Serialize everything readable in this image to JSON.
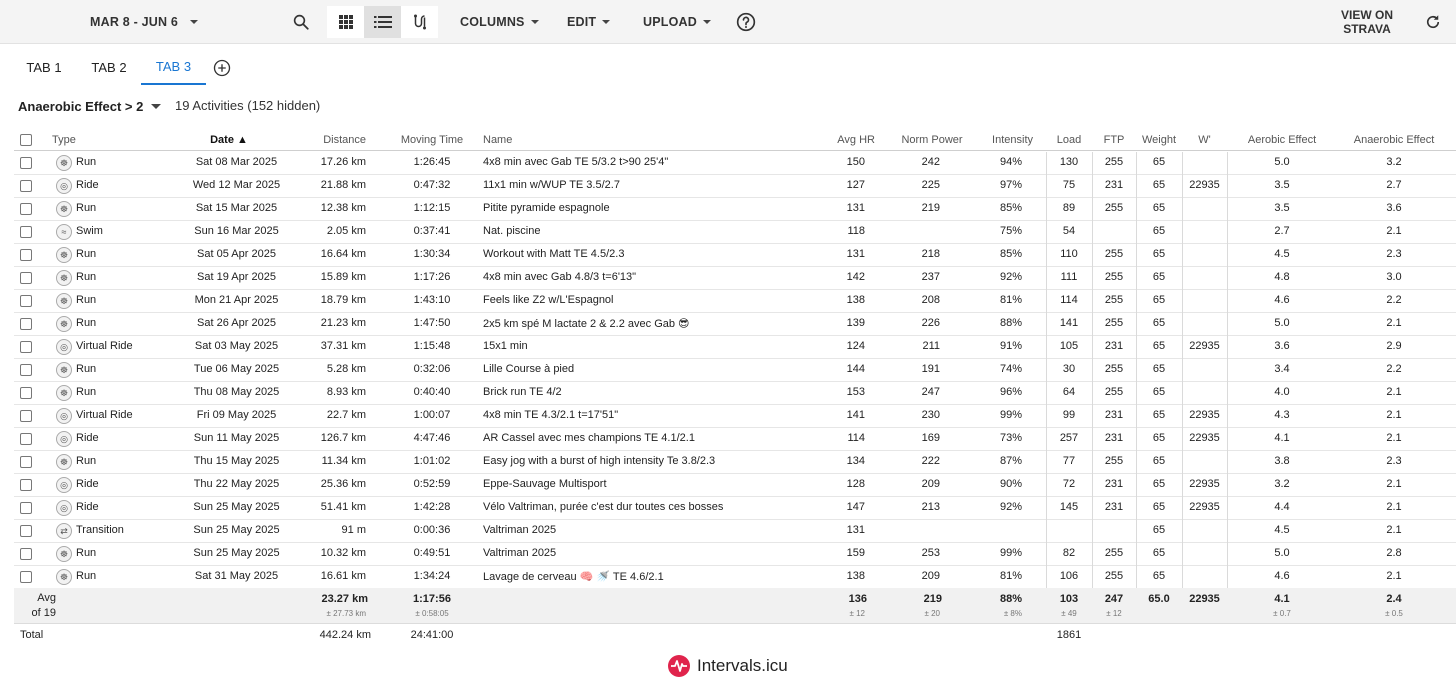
{
  "toolbar": {
    "date_range": "MAR 8 - JUN 6",
    "columns_label": "COLUMNS",
    "edit_label": "EDIT",
    "upload_label": "UPLOAD",
    "view_on_strava_line1": "VIEW ON",
    "view_on_strava_line2": "STRAVA"
  },
  "tabs": [
    {
      "label": "TAB 1",
      "active": false
    },
    {
      "label": "TAB 2",
      "active": false
    },
    {
      "label": "TAB 3",
      "active": true
    }
  ],
  "filter": {
    "label": "Anaerobic Effect > 2",
    "count": "19 Activities (152 hidden)"
  },
  "columns": {
    "type": "Type",
    "date": "Date ▲",
    "distance": "Distance",
    "moving_time": "Moving Time",
    "name": "Name",
    "avg_hr": "Avg HR",
    "norm_power": "Norm Power",
    "intensity": "Intensity",
    "load": "Load",
    "ftp": "FTP",
    "weight": "Weight",
    "w_prime": "W'",
    "aerobic": "Aerobic Effect",
    "anaerobic": "Anaerobic Effect"
  },
  "rows": [
    {
      "type": "Run",
      "date": "Sat 08 Mar 2025",
      "distance": "17.26 km",
      "time": "1:26:45",
      "name": "4x8 min avec Gab TE 5/3.2 t>90 25'4\"",
      "hr": "150",
      "np": "242",
      "int": "94%",
      "load": "130",
      "ftp": "255",
      "wt": "65",
      "wp": "",
      "ae": "5.0",
      "an": "3.2"
    },
    {
      "type": "Ride",
      "date": "Wed 12 Mar 2025",
      "distance": "21.88 km",
      "time": "0:47:32",
      "name": "11x1 min w/WUP TE 3.5/2.7",
      "hr": "127",
      "np": "225",
      "int": "97%",
      "load": "75",
      "ftp": "231",
      "wt": "65",
      "wp": "22935",
      "ae": "3.5",
      "an": "2.7"
    },
    {
      "type": "Run",
      "date": "Sat 15 Mar 2025",
      "distance": "12.38 km",
      "time": "1:12:15",
      "name": "Pitite pyramide espagnole",
      "hr": "131",
      "np": "219",
      "int": "85%",
      "load": "89",
      "ftp": "255",
      "wt": "65",
      "wp": "",
      "ae": "3.5",
      "an": "3.6"
    },
    {
      "type": "Swim",
      "date": "Sun 16 Mar 2025",
      "distance": "2.05 km",
      "time": "0:37:41",
      "name": "Nat. piscine",
      "hr": "118",
      "np": "",
      "int": "75%",
      "load": "54",
      "ftp": "",
      "wt": "65",
      "wp": "",
      "ae": "2.7",
      "an": "2.1"
    },
    {
      "type": "Run",
      "date": "Sat 05 Apr 2025",
      "distance": "16.64 km",
      "time": "1:30:34",
      "name": "Workout with Matt TE 4.5/2.3",
      "hr": "131",
      "np": "218",
      "int": "85%",
      "load": "110",
      "ftp": "255",
      "wt": "65",
      "wp": "",
      "ae": "4.5",
      "an": "2.3"
    },
    {
      "type": "Run",
      "date": "Sat 19 Apr 2025",
      "distance": "15.89 km",
      "time": "1:17:26",
      "name": "4x8 min avec Gab 4.8/3 t=6'13\"",
      "hr": "142",
      "np": "237",
      "int": "92%",
      "load": "111",
      "ftp": "255",
      "wt": "65",
      "wp": "",
      "ae": "4.8",
      "an": "3.0"
    },
    {
      "type": "Run",
      "date": "Mon 21 Apr 2025",
      "distance": "18.79 km",
      "time": "1:43:10",
      "name": "Feels like Z2 w/L'Espagnol",
      "hr": "138",
      "np": "208",
      "int": "81%",
      "load": "114",
      "ftp": "255",
      "wt": "65",
      "wp": "",
      "ae": "4.6",
      "an": "2.2"
    },
    {
      "type": "Run",
      "date": "Sat 26 Apr 2025",
      "distance": "21.23 km",
      "time": "1:47:50",
      "name": "2x5 km spé M lactate 2 & 2.2 avec Gab 😎",
      "hr": "139",
      "np": "226",
      "int": "88%",
      "load": "141",
      "ftp": "255",
      "wt": "65",
      "wp": "",
      "ae": "5.0",
      "an": "2.1"
    },
    {
      "type": "Virtual Ride",
      "date": "Sat 03 May 2025",
      "distance": "37.31 km",
      "time": "1:15:48",
      "name": "15x1 min",
      "hr": "124",
      "np": "211",
      "int": "91%",
      "load": "105",
      "ftp": "231",
      "wt": "65",
      "wp": "22935",
      "ae": "3.6",
      "an": "2.9"
    },
    {
      "type": "Run",
      "date": "Tue 06 May 2025",
      "distance": "5.28 km",
      "time": "0:32:06",
      "name": "Lille Course à pied",
      "hr": "144",
      "np": "191",
      "int": "74%",
      "load": "30",
      "ftp": "255",
      "wt": "65",
      "wp": "",
      "ae": "3.4",
      "an": "2.2"
    },
    {
      "type": "Run",
      "date": "Thu 08 May 2025",
      "distance": "8.93 km",
      "time": "0:40:40",
      "name": "Brick run TE 4/2",
      "hr": "153",
      "np": "247",
      "int": "96%",
      "load": "64",
      "ftp": "255",
      "wt": "65",
      "wp": "",
      "ae": "4.0",
      "an": "2.1"
    },
    {
      "type": "Virtual Ride",
      "date": "Fri 09 May 2025",
      "distance": "22.7 km",
      "time": "1:00:07",
      "name": "4x8 min TE 4.3/2.1 t=17'51\"",
      "hr": "141",
      "np": "230",
      "int": "99%",
      "load": "99",
      "ftp": "231",
      "wt": "65",
      "wp": "22935",
      "ae": "4.3",
      "an": "2.1"
    },
    {
      "type": "Ride",
      "date": "Sun 11 May 2025",
      "distance": "126.7 km",
      "time": "4:47:46",
      "name": "AR Cassel avec mes champions TE 4.1/2.1",
      "hr": "114",
      "np": "169",
      "int": "73%",
      "load": "257",
      "ftp": "231",
      "wt": "65",
      "wp": "22935",
      "ae": "4.1",
      "an": "2.1"
    },
    {
      "type": "Run",
      "date": "Thu 15 May 2025",
      "distance": "11.34 km",
      "time": "1:01:02",
      "name": "Easy jog with a burst of high intensity Te 3.8/2.3",
      "hr": "134",
      "np": "222",
      "int": "87%",
      "load": "77",
      "ftp": "255",
      "wt": "65",
      "wp": "",
      "ae": "3.8",
      "an": "2.3"
    },
    {
      "type": "Ride",
      "date": "Thu 22 May 2025",
      "distance": "25.36 km",
      "time": "0:52:59",
      "name": "Eppe-Sauvage Multisport",
      "hr": "128",
      "np": "209",
      "int": "90%",
      "load": "72",
      "ftp": "231",
      "wt": "65",
      "wp": "22935",
      "ae": "3.2",
      "an": "2.1"
    },
    {
      "type": "Ride",
      "date": "Sun 25 May 2025",
      "distance": "51.41 km",
      "time": "1:42:28",
      "name": "Vélo Valtriman, purée c'est dur toutes ces bosses",
      "hr": "147",
      "np": "213",
      "int": "92%",
      "load": "145",
      "ftp": "231",
      "wt": "65",
      "wp": "22935",
      "ae": "4.4",
      "an": "2.1"
    },
    {
      "type": "Transition",
      "date": "Sun 25 May 2025",
      "distance": "91 m",
      "time": "0:00:36",
      "name": "Valtriman 2025",
      "hr": "131",
      "np": "",
      "int": "",
      "load": "",
      "ftp": "",
      "wt": "65",
      "wp": "",
      "ae": "4.5",
      "an": "2.1"
    },
    {
      "type": "Run",
      "date": "Sun 25 May 2025",
      "distance": "10.32 km",
      "time": "0:49:51",
      "name": "Valtriman 2025",
      "hr": "159",
      "np": "253",
      "int": "99%",
      "load": "82",
      "ftp": "255",
      "wt": "65",
      "wp": "",
      "ae": "5.0",
      "an": "2.8"
    },
    {
      "type": "Run",
      "date": "Sat 31 May 2025",
      "distance": "16.61 km",
      "time": "1:34:24",
      "name": "Lavage de cerveau 🧠 🚿 TE 4.6/2.1",
      "hr": "138",
      "np": "209",
      "int": "81%",
      "load": "106",
      "ftp": "255",
      "wt": "65",
      "wp": "",
      "ae": "4.6",
      "an": "2.1"
    }
  ],
  "avg": {
    "label1": "Avg",
    "label2": "of 19",
    "distance": "23.27 km",
    "distance_sd": "± 27.73 km",
    "time": "1:17:56",
    "time_sd": "± 0:58:05",
    "hr": "136",
    "hr_sd": "± 12",
    "np": "219",
    "np_sd": "± 20",
    "int": "88%",
    "int_sd": "± 8%",
    "load": "103",
    "load_sd": "± 49",
    "ftp": "247",
    "ftp_sd": "± 12",
    "wt": "65.0",
    "wp": "22935",
    "ae": "4.1",
    "ae_sd": "± 0.7",
    "an": "2.4",
    "an_sd": "± 0.5"
  },
  "total": {
    "label": "Total",
    "distance": "442.24 km",
    "time": "24:41:00",
    "load": "1861"
  },
  "brand": {
    "name": "Intervals.icu",
    "color": "#e0244c"
  },
  "accent": "#1976d2"
}
